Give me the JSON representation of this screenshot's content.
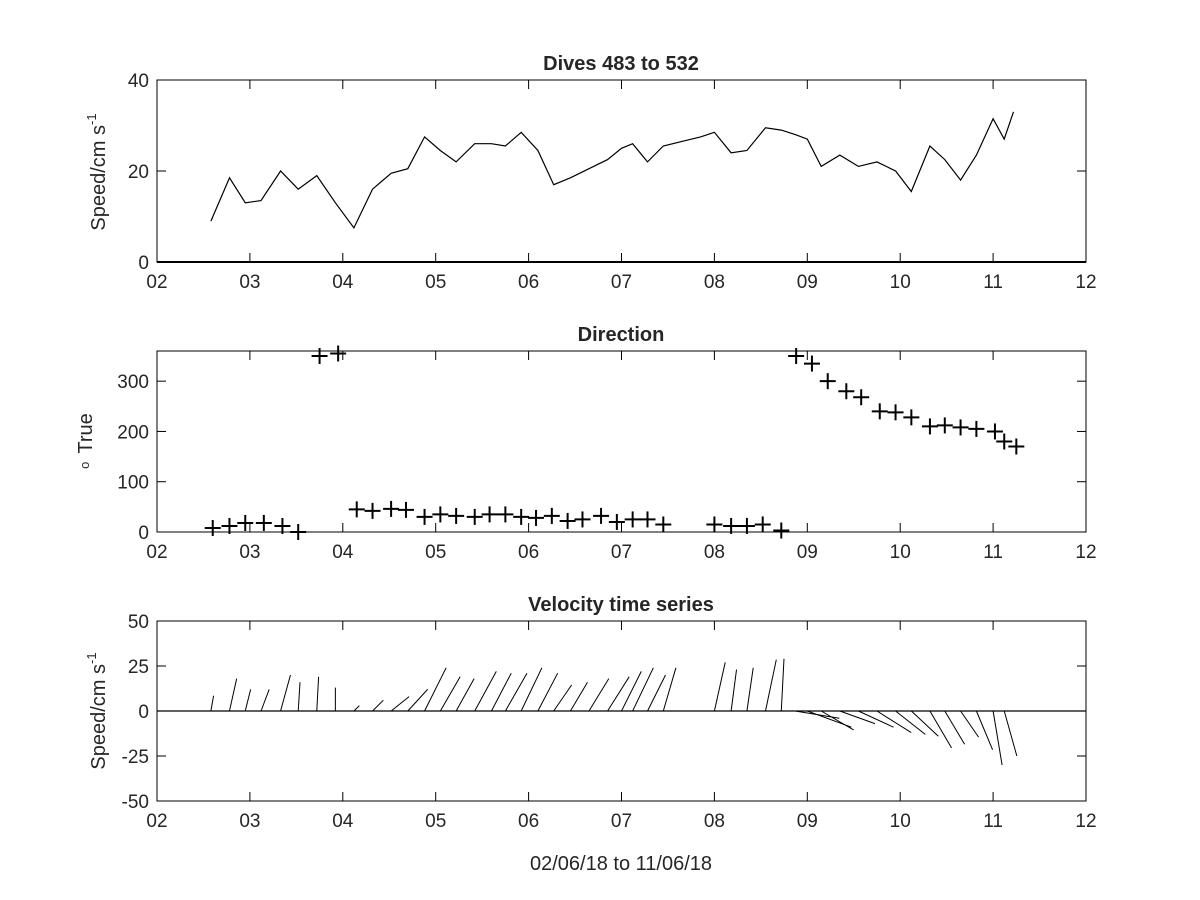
{
  "chart_data": [
    {
      "type": "line",
      "title": "Dives 483 to 532",
      "ylabel_main": "Speed/cm s",
      "ylabel_sup": "-1",
      "xlim": [
        2,
        12
      ],
      "ylim": [
        0,
        40
      ],
      "xticks": [
        2,
        3,
        4,
        5,
        6,
        7,
        8,
        9,
        10,
        11,
        12
      ],
      "xticklabels": [
        "02",
        "03",
        "04",
        "05",
        "06",
        "07",
        "08",
        "09",
        "10",
        "11",
        "12"
      ],
      "yticks": [
        0,
        20,
        40
      ],
      "yticklabels": [
        "0",
        "20",
        "40"
      ],
      "grid": false,
      "color": "#000000",
      "x": [
        2.58,
        2.78,
        2.95,
        3.12,
        3.33,
        3.52,
        3.72,
        3.92,
        4.12,
        4.32,
        4.52,
        4.7,
        4.88,
        5.05,
        5.22,
        5.42,
        5.6,
        5.75,
        5.92,
        6.1,
        6.27,
        6.45,
        6.65,
        6.85,
        7.0,
        7.12,
        7.28,
        7.45,
        7.65,
        7.85,
        8.0,
        8.18,
        8.35,
        8.55,
        8.72,
        8.87,
        9.0,
        9.15,
        9.35,
        9.55,
        9.75,
        9.95,
        10.12,
        10.32,
        10.48,
        10.65,
        10.82,
        11.0,
        11.12,
        11.22
      ],
      "y": [
        9.0,
        18.5,
        13.0,
        13.5,
        20.0,
        16.0,
        19.0,
        13.0,
        7.5,
        16.0,
        19.5,
        20.5,
        27.5,
        24.5,
        22.0,
        26.0,
        26.0,
        25.5,
        28.5,
        24.5,
        17.0,
        18.5,
        20.5,
        22.5,
        25.0,
        26.0,
        22.0,
        25.5,
        26.5,
        27.5,
        28.5,
        24.0,
        24.5,
        29.5,
        29.0,
        28.0,
        27.0,
        21.0,
        23.5,
        21.0,
        22.0,
        20.0,
        15.5,
        25.5,
        22.5,
        18.0,
        23.5,
        31.5,
        27.0,
        33.0
      ]
    },
    {
      "type": "scatter",
      "title": "Direction",
      "ylabel_main": "True",
      "ylabel_sup": "o",
      "marker": "+",
      "xlim": [
        2,
        12
      ],
      "ylim": [
        0,
        360
      ],
      "xticks": [
        2,
        3,
        4,
        5,
        6,
        7,
        8,
        9,
        10,
        11,
        12
      ],
      "xticklabels": [
        "02",
        "03",
        "04",
        "05",
        "06",
        "07",
        "08",
        "09",
        "10",
        "11",
        "12"
      ],
      "yticks": [
        0,
        100,
        200,
        300
      ],
      "yticklabels": [
        "0",
        "100",
        "200",
        "300"
      ],
      "grid": false,
      "color": "#000000",
      "x": [
        2.6,
        2.78,
        2.95,
        3.15,
        3.35,
        3.52,
        3.75,
        3.95,
        4.15,
        4.32,
        4.52,
        4.68,
        4.88,
        5.05,
        5.22,
        5.42,
        5.58,
        5.75,
        5.92,
        6.08,
        6.25,
        6.42,
        6.58,
        6.78,
        6.95,
        7.12,
        7.28,
        7.45,
        8.0,
        8.18,
        8.35,
        8.52,
        8.72,
        8.88,
        9.05,
        9.22,
        9.42,
        9.58,
        9.78,
        9.95,
        10.12,
        10.32,
        10.48,
        10.65,
        10.82,
        11.02,
        11.12,
        11.25
      ],
      "y": [
        8,
        12,
        18,
        18,
        12,
        0,
        350,
        355,
        45,
        42,
        46,
        44,
        30,
        35,
        32,
        30,
        35,
        35,
        30,
        28,
        32,
        22,
        25,
        32,
        20,
        25,
        25,
        15,
        15,
        12,
        12,
        15,
        3,
        350,
        335,
        300,
        280,
        268,
        240,
        238,
        228,
        210,
        212,
        208,
        205,
        200,
        180,
        170
      ]
    },
    {
      "type": "vector",
      "title": "Velocity time series",
      "ylabel_main": "Speed/cm s",
      "ylabel_sup": "-1",
      "xlabel": "02/06/18 to 11/06/18",
      "xlim": [
        2,
        12
      ],
      "ylim": [
        -50,
        50
      ],
      "xticks": [
        2,
        3,
        4,
        5,
        6,
        7,
        8,
        9,
        10,
        11,
        12
      ],
      "xticklabels": [
        "02",
        "03",
        "04",
        "05",
        "06",
        "07",
        "08",
        "09",
        "10",
        "11",
        "12"
      ],
      "yticks": [
        -50,
        -25,
        0,
        25,
        50
      ],
      "yticklabels": [
        "-50",
        "-25",
        "0",
        "25",
        "50"
      ],
      "grid": false,
      "color": "#000000",
      "x": [
        2.58,
        2.78,
        2.95,
        3.12,
        3.33,
        3.52,
        3.72,
        3.92,
        4.12,
        4.32,
        4.52,
        4.7,
        4.88,
        5.05,
        5.22,
        5.42,
        5.6,
        5.75,
        5.92,
        6.1,
        6.27,
        6.45,
        6.65,
        6.85,
        7.0,
        7.12,
        7.28,
        7.45,
        8.0,
        8.18,
        8.35,
        8.55,
        8.72,
        8.87,
        9.0,
        9.15,
        9.35,
        9.55,
        9.75,
        9.95,
        10.12,
        10.32,
        10.48,
        10.65,
        10.82,
        11.0,
        11.12
      ],
      "u": [
        1.5,
        4.0,
        3.0,
        4.5,
        5.5,
        1.0,
        1.0,
        0.0,
        3.0,
        6.0,
        10.0,
        11.0,
        12.0,
        11.0,
        10.0,
        12.0,
        11.0,
        12.0,
        11.5,
        11.0,
        10.0,
        9.5,
        11.0,
        12.0,
        11.0,
        11.5,
        10.0,
        7.0,
        6.0,
        3.0,
        3.5,
        6.0,
        1.5,
        24.5,
        24.5,
        18.0,
        19.5,
        19.5,
        19.0,
        16.5,
        15.0,
        12.0,
        11.0,
        10.0,
        9.0,
        5.0,
        7.0
      ],
      "v": [
        8.5,
        18.0,
        12.0,
        12.0,
        20.0,
        16.0,
        19.0,
        13.0,
        3.0,
        6.0,
        8.0,
        12.0,
        24.0,
        19.0,
        18.0,
        22.0,
        21.0,
        21.0,
        24.0,
        21.0,
        14.5,
        16.0,
        18.0,
        19.0,
        22.0,
        24.0,
        20.0,
        24.0,
        27.0,
        23.0,
        24.0,
        28.5,
        29.0,
        -4.0,
        -9.0,
        -10.5,
        -7.0,
        -9.0,
        -12.0,
        -13.0,
        -14.0,
        -20.5,
        -18.5,
        -14.5,
        -21.5,
        -30.0,
        -25.0
      ]
    }
  ]
}
